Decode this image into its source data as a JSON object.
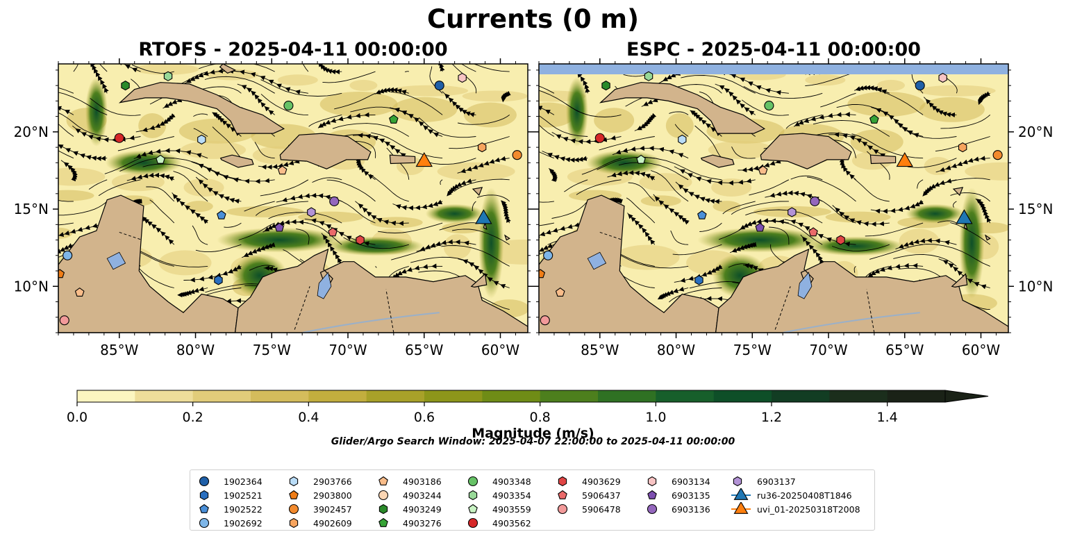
{
  "figure": {
    "title": "Currents (0 m)",
    "panels": [
      {
        "title": "RTOFS - 2025-04-11 00:00:00"
      },
      {
        "title": "ESPC - 2025-04-11 00:00:00"
      }
    ],
    "x_tick_labels": [
      "85°W",
      "80°W",
      "75°W",
      "70°W",
      "65°W",
      "60°W"
    ],
    "y_tick_labels": [
      "20°N",
      "15°N",
      "10°N"
    ],
    "extent": {
      "lon": [
        -89.0,
        -58.2
      ],
      "lat": [
        7.0,
        24.4
      ]
    },
    "colorbar": {
      "label": "Magnitude (m/s)",
      "ticks": [
        "0.0",
        "0.2",
        "0.4",
        "0.6",
        "0.8",
        "1.0",
        "1.2",
        "1.4"
      ],
      "range": [
        0.0,
        1.5
      ],
      "extend": "max",
      "colors": [
        "#fbf5c0",
        "#eedd9a",
        "#e1cc7a",
        "#d4bc5c",
        "#c2ae3e",
        "#a8a129",
        "#8d961a",
        "#6f8c16",
        "#4d7f1d",
        "#2f7123",
        "#175f2b",
        "#0e4f28",
        "#123d23",
        "#1b2e1c",
        "#1a2217"
      ]
    },
    "search_window": "Glider/Argo Search Window: 2025-04-07 22:00:00 to 2025-04-11 00:00:00",
    "colors": {
      "land": "#d2b48c",
      "lake": "#8fb1e0",
      "top_strip": "#8fb1e0",
      "river": "#9ab0c9"
    }
  },
  "legend": {
    "columns": [
      [
        {
          "label": "1902364",
          "marker": "circle",
          "color": "#1f5fa8"
        },
        {
          "label": "1902521",
          "marker": "hexagon",
          "color": "#2a6fbf"
        },
        {
          "label": "1902522",
          "marker": "pentagon",
          "color": "#4a8fd8"
        },
        {
          "label": "1902692",
          "marker": "circle",
          "color": "#7eb6e8"
        }
      ],
      [
        {
          "label": "2903766",
          "marker": "hexagon",
          "color": "#b9dcf7"
        },
        {
          "label": "2903800",
          "marker": "pentagon",
          "color": "#ef7d17"
        },
        {
          "label": "3902457",
          "marker": "circle",
          "color": "#f28a2e"
        },
        {
          "label": "4902609",
          "marker": "hexagon",
          "color": "#f7a45e"
        }
      ],
      [
        {
          "label": "4903186",
          "marker": "pentagon",
          "color": "#f9bd8a"
        },
        {
          "label": "4903244",
          "marker": "circle",
          "color": "#fbd6b4"
        },
        {
          "label": "4903249",
          "marker": "hexagon",
          "color": "#2a8a2a"
        },
        {
          "label": "4903276",
          "marker": "pentagon",
          "color": "#36a336"
        }
      ],
      [
        {
          "label": "4903348",
          "marker": "circle",
          "color": "#66c266"
        },
        {
          "label": "4903354",
          "marker": "hexagon",
          "color": "#98d998"
        },
        {
          "label": "4903559",
          "marker": "pentagon",
          "color": "#c8f2c3"
        },
        {
          "label": "4903562",
          "marker": "circle",
          "color": "#d62728"
        }
      ],
      [
        {
          "label": "4903629",
          "marker": "hexagon",
          "color": "#e04545"
        },
        {
          "label": "5906437",
          "marker": "pentagon",
          "color": "#ea6a6a"
        },
        {
          "label": "5906478",
          "marker": "circle",
          "color": "#f29a9a"
        }
      ],
      [
        {
          "label": "6903134",
          "marker": "hexagon",
          "color": "#f8c4c4"
        },
        {
          "label": "6903135",
          "marker": "pentagon",
          "color": "#7d4fb0"
        },
        {
          "label": "6903136",
          "marker": "circle",
          "color": "#9467bd"
        }
      ],
      [
        {
          "label": "6903137",
          "marker": "hexagon",
          "color": "#b393d6"
        },
        {
          "label": "ru36-20250408T1846",
          "marker": "triangle",
          "color": "#1f77b4"
        },
        {
          "label": "uvi_01-20250318T2008",
          "marker": "triangle",
          "color": "#ff7f0e"
        }
      ]
    ]
  },
  "map_markers": [
    {
      "id": "1902364",
      "lon": -64.0,
      "lat": 23.0
    },
    {
      "id": "6903134",
      "lon": -62.5,
      "lat": 23.5
    },
    {
      "id": "4903354",
      "lon": -81.8,
      "lat": 23.6
    },
    {
      "id": "4903249",
      "lon": -84.6,
      "lat": 23.0
    },
    {
      "id": "4903348",
      "lon": -73.9,
      "lat": 21.7
    },
    {
      "id": "4903276",
      "lon": -67.0,
      "lat": 20.8
    },
    {
      "id": "4903562",
      "lon": -85.0,
      "lat": 19.6
    },
    {
      "id": "2903766",
      "lon": -79.6,
      "lat": 19.5
    },
    {
      "id": "4902609",
      "lon": -61.2,
      "lat": 19.0
    },
    {
      "id": "3902457",
      "lon": -58.9,
      "lat": 18.5
    },
    {
      "id": "4903559",
      "lon": -82.3,
      "lat": 18.2
    },
    {
      "id": "4903186",
      "lon": -74.3,
      "lat": 17.5
    },
    {
      "id": "6903136",
      "lon": -70.9,
      "lat": 15.5
    },
    {
      "id": "6903137",
      "lon": -72.4,
      "lat": 14.8
    },
    {
      "id": "1902522",
      "lon": -78.3,
      "lat": 14.6
    },
    {
      "id": "6903135",
      "lon": -74.5,
      "lat": 13.8
    },
    {
      "id": "5906437",
      "lon": -71.0,
      "lat": 13.5
    },
    {
      "id": "4903629",
      "lon": -69.2,
      "lat": 13.0
    },
    {
      "id": "1902692",
      "lon": -88.4,
      "lat": 12.0
    },
    {
      "id": "2903800",
      "lon": -88.9,
      "lat": 10.8
    },
    {
      "id": "1902521",
      "lon": -78.5,
      "lat": 10.4
    },
    {
      "id": "4903186",
      "lon": -87.6,
      "lat": 9.6
    },
    {
      "id": "5906478",
      "lon": -88.6,
      "lat": 7.8
    },
    {
      "id": "ru36-20250408T1846",
      "lon": -61.1,
      "lat": 14.5
    },
    {
      "id": "uvi_01-20250318T2008",
      "lon": -65.0,
      "lat": 18.2
    }
  ]
}
